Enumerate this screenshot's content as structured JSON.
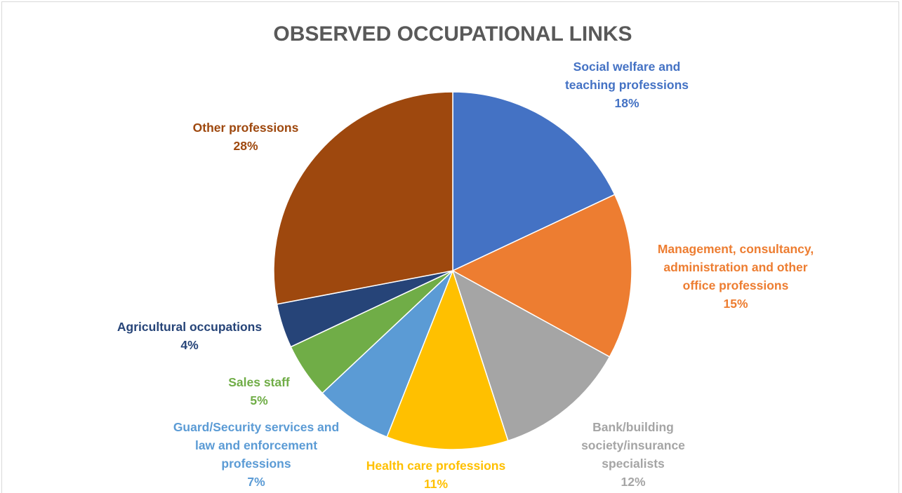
{
  "chart_data": {
    "type": "pie",
    "title": "OBSERVED OCCUPATIONAL LINKS",
    "categories": [
      "Social welfare and teaching professions",
      "Management, consultancy, administration and other office professions",
      "Bank/building society/insurance specialists",
      "Health care professions",
      "Guard/Security services and law and enforcement professions",
      "Sales staff",
      "Agricultural occupations",
      "Other professions"
    ],
    "values": [
      18,
      15,
      12,
      11,
      7,
      5,
      4,
      28
    ],
    "value_labels": [
      "18%",
      "15%",
      "12%",
      "11%",
      "7%",
      "5%",
      "4%",
      "28%"
    ],
    "colors": [
      "#4472c4",
      "#ed7d31",
      "#a5a5a5",
      "#ffc000",
      "#5b9bd5",
      "#70ad47",
      "#264478",
      "#9e480e"
    ]
  }
}
